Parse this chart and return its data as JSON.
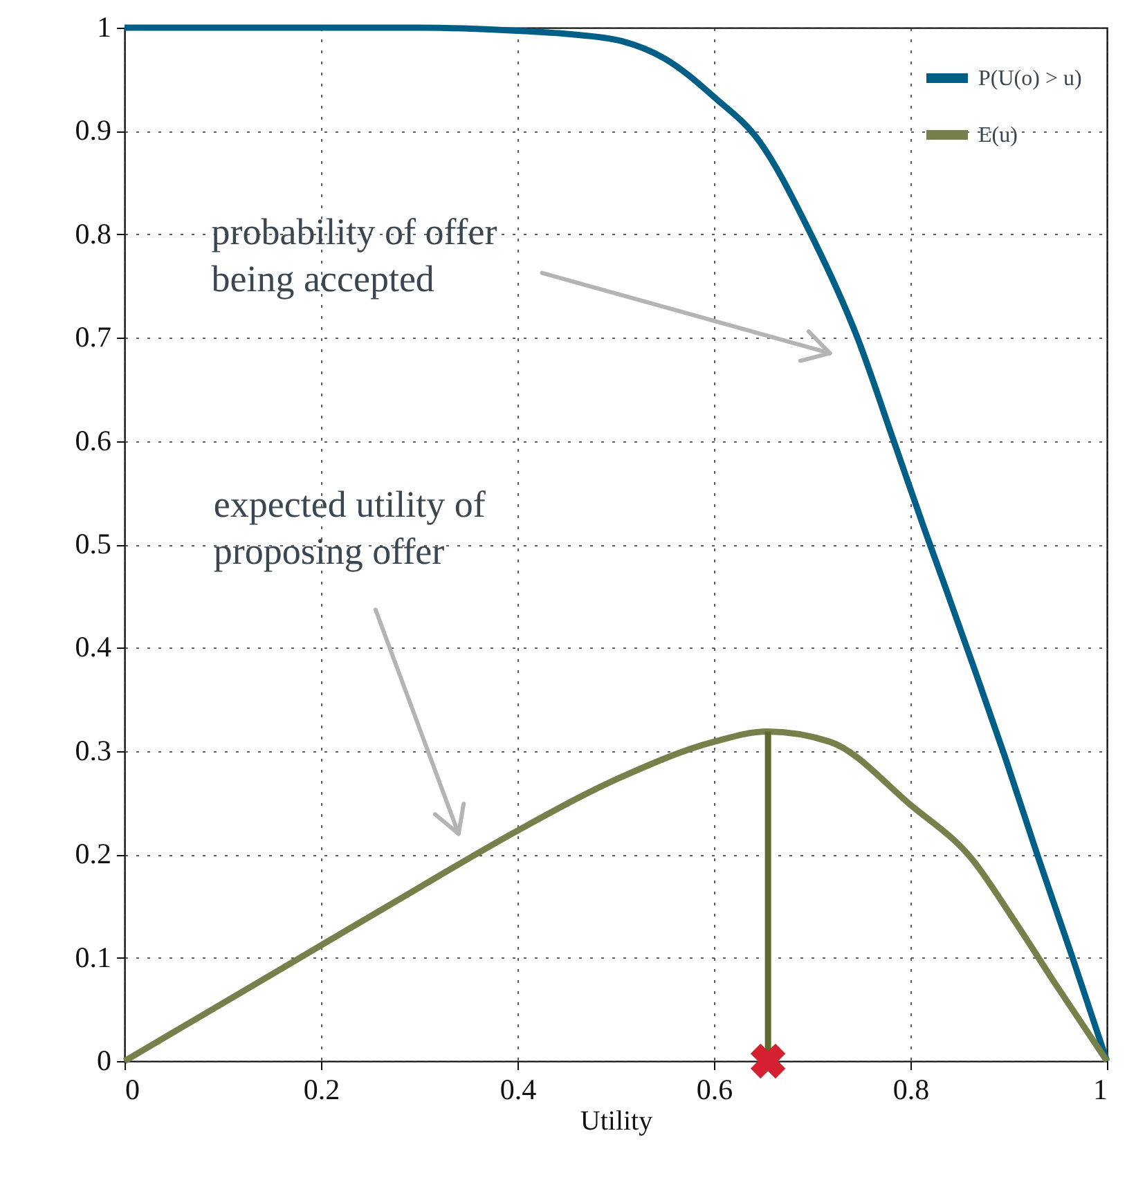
{
  "chart_data": {
    "type": "line",
    "xlabel": "Utility",
    "xlim": [
      0,
      1
    ],
    "xticks": [
      0,
      0.2,
      0.4,
      0.6,
      0.8,
      1
    ],
    "ylim": [
      0,
      1
    ],
    "yticks": [
      0,
      0.1,
      0.2,
      0.3,
      0.4,
      0.5,
      0.6,
      0.7,
      0.8,
      0.9,
      1
    ],
    "grid": true,
    "legend": "top right",
    "line_style": "solid",
    "marker": "none",
    "series": [
      {
        "name": "P(U(o) > u)",
        "color": "#005f87",
        "x": [
          0,
          0.2,
          0.3,
          0.4,
          0.45,
          0.506,
          0.55,
          0.6,
          0.647,
          0.694,
          0.746,
          0.783,
          0.816,
          0.835,
          0.863,
          0.896,
          0.929,
          0.965,
          1
        ],
        "values": [
          1,
          1,
          1,
          0.997,
          0.994,
          0.987,
          0.97,
          0.933,
          0.889,
          0.809,
          0.7,
          0.6,
          0.51,
          0.46,
          0.385,
          0.295,
          0.2,
          0.1,
          0
        ]
      },
      {
        "name": "E(u)",
        "color": "#76804a",
        "x": [
          0,
          0.1,
          0.2,
          0.3,
          0.4,
          0.506,
          0.6,
          0.654,
          0.718,
          0.8,
          0.863,
          0.905,
          0.948,
          1
        ],
        "values": [
          0,
          0.056,
          0.112,
          0.168,
          0.223,
          0.275,
          0.309,
          0.319,
          0.309,
          0.248,
          0.195,
          0.137,
          0.074,
          0
        ]
      },
      {
        "type": "line",
        "color": "#5f6b2e",
        "x": [
          0.655,
          0.655
        ],
        "values": [
          0,
          0.319
        ]
      },
      {
        "type": "scatter",
        "color": "#d42030",
        "marker": "cross",
        "x": [
          0.655
        ],
        "values": [
          0
        ]
      }
    ],
    "annotations": [
      "probability of offer\nbeing accepted",
      "expected utility of\nproposing offer"
    ]
  }
}
